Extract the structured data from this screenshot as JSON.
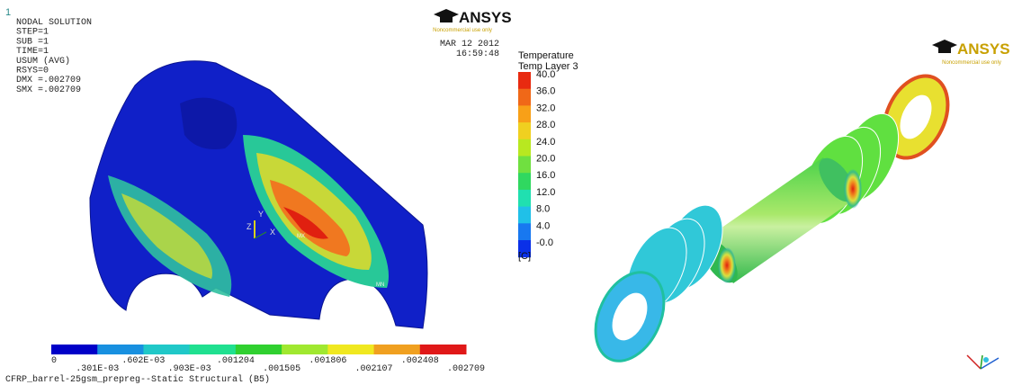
{
  "left_panel": {
    "window_number": "1",
    "info_lines": [
      "NODAL SOLUTION",
      "STEP=1",
      "SUB =1",
      "TIME=1",
      "USUM      (AVG)",
      "RSYS=0",
      "DMX =.002709",
      "SMX =.002709"
    ],
    "date": "MAR 12 2012",
    "time": "16:59:48",
    "logo": {
      "brand": "ANSYS",
      "note": "Noncommercial use only"
    },
    "triad": {
      "x": "X",
      "y": "Y",
      "z": "Z"
    },
    "markers": {
      "max": "MX",
      "min": "MN"
    },
    "colorbar": {
      "upper_labels": [
        "0",
        ".602E-03",
        ".001204",
        ".001806",
        ".002408"
      ],
      "lower_labels": [
        ".301E-03",
        ".903E-03",
        ".001505",
        ".002107",
        ".002709"
      ]
    },
    "footer": "CFRP_barrel-25gsm_prepreg--Static Structural (B5)"
  },
  "right_panel": {
    "logo": {
      "brand": "ANSYS",
      "note": "Noncommercial use only"
    },
    "legend": {
      "title": "Temperature",
      "subtitle": "Temp Layer 3",
      "labels": [
        "40.0",
        "36.0",
        "32.0",
        "28.0",
        "24.0",
        "20.0",
        "16.0",
        "12.0",
        "8.0",
        "4.0",
        "-0.0"
      ],
      "unit": "[C]"
    }
  }
}
